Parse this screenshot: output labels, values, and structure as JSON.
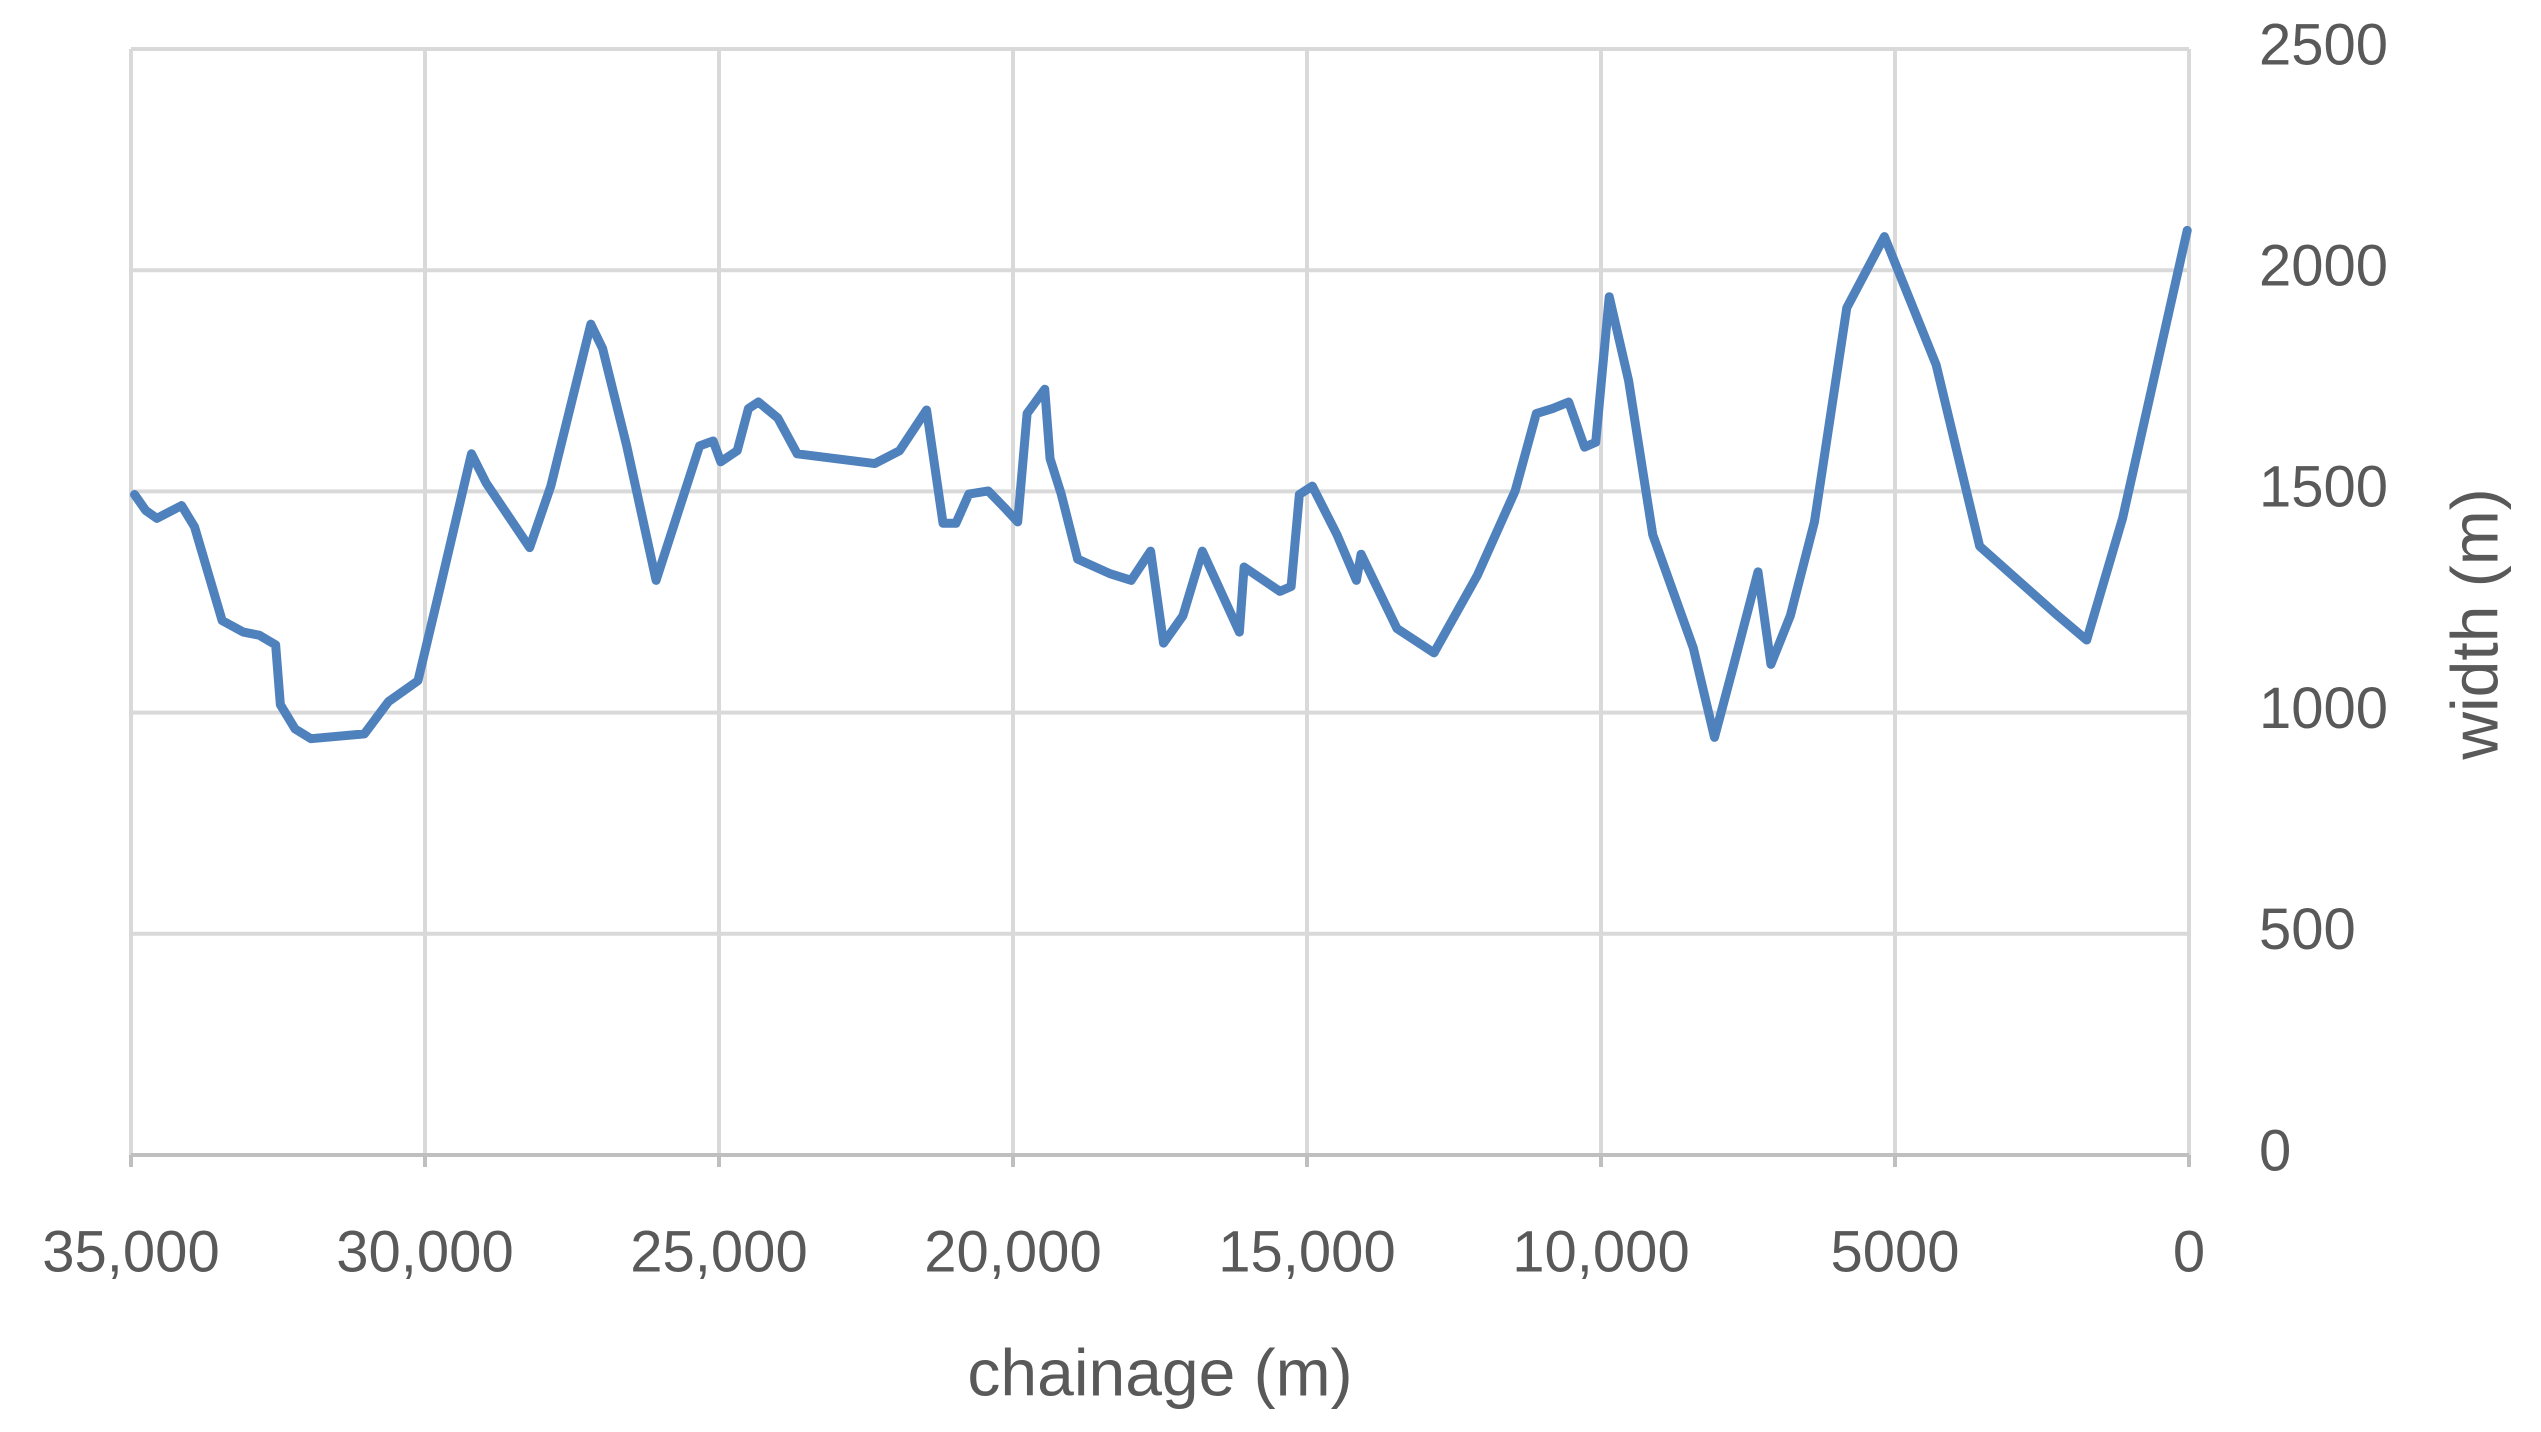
{
  "chart_data": {
    "type": "line",
    "x_label": "chainage (m)",
    "y_label": "width (m)",
    "xlim": [
      35000,
      0
    ],
    "xticks": [
      {
        "value": 35000,
        "label": "35,000"
      },
      {
        "value": 30000,
        "label": "30,000"
      },
      {
        "value": 25000,
        "label": "25,000"
      },
      {
        "value": 20000,
        "label": "20,000"
      },
      {
        "value": 15000,
        "label": "15,000"
      },
      {
        "value": 10000,
        "label": "10,000"
      },
      5000,
      0
    ],
    "ylim": [
      0,
      2500
    ],
    "yticks": [
      0,
      500,
      1000,
      1500,
      2000,
      2500
    ],
    "grid": true,
    "y_axis_side": "right",
    "x": [
      34940,
      34750,
      34560,
      34140,
      33920,
      33450,
      33090,
      32820,
      32540,
      32460,
      32210,
      31940,
      31030,
      30620,
      30120,
      29790,
      29210,
      28960,
      28220,
      27860,
      27180,
      26980,
      26570,
      26070,
      25330,
      25100,
      24970,
      24690,
      24500,
      24330,
      24000,
      23670,
      22350,
      21930,
      21470,
      21190,
      20970,
      20750,
      20420,
      20150,
      19920,
      19760,
      19460,
      19370,
      19180,
      18900,
      18350,
      17990,
      17660,
      17440,
      17110,
      16780,
      16150,
      16070,
      15460,
      15270,
      15130,
      14910,
      14490,
      14160,
      14080,
      13470,
      12840,
      12100,
      11460,
      11100,
      10830,
      10550,
      10280,
      10090,
      9860,
      9530,
      9120,
      8430,
      8070,
      7740,
      7330,
      7110,
      6780,
      6370,
      5820,
      5180,
      4300,
      3560,
      2230,
      1740,
      1130,
      30
    ],
    "series": [
      {
        "name": "width",
        "color": "#4f81bd",
        "values": [
          1493,
          1457,
          1439,
          1468,
          1420,
          1208,
          1182,
          1175,
          1153,
          1018,
          963,
          941,
          952,
          1025,
          1072,
          1256,
          1585,
          1519,
          1373,
          1512,
          1878,
          1823,
          1603,
          1299,
          1603,
          1614,
          1567,
          1592,
          1687,
          1702,
          1666,
          1585,
          1563,
          1592,
          1684,
          1428,
          1428,
          1494,
          1501,
          1464,
          1431,
          1676,
          1731,
          1574,
          1494,
          1347,
          1314,
          1299,
          1365,
          1157,
          1219,
          1365,
          1182,
          1329,
          1274,
          1285,
          1493,
          1512,
          1402,
          1299,
          1358,
          1190,
          1135,
          1311,
          1501,
          1676,
          1687,
          1702,
          1600,
          1611,
          1940,
          1750,
          1402,
          1146,
          944,
          1109,
          1318,
          1109,
          1219,
          1431,
          1915,
          2076,
          1786,
          1376,
          1219,
          1164,
          1439,
          2090
        ]
      }
    ]
  }
}
